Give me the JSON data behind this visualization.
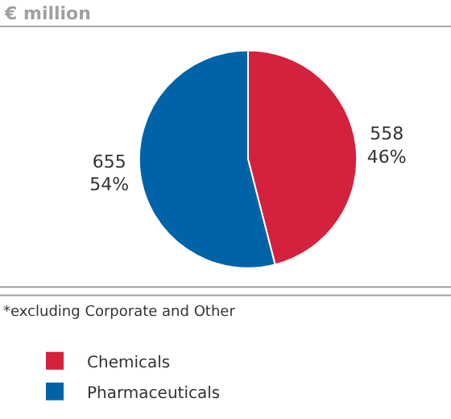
{
  "chart_data": {
    "type": "pie",
    "title": "€ million",
    "categories": [
      "Chemicals",
      "Pharmaceuticals"
    ],
    "values": [
      558,
      655
    ],
    "value_labels": [
      "558\n46%",
      "655\n54%"
    ],
    "colors": [
      "#d4213d",
      "#0063a8"
    ],
    "annotations": [
      "*excluding Corporate and Other"
    ],
    "legend": "bottom left"
  }
}
